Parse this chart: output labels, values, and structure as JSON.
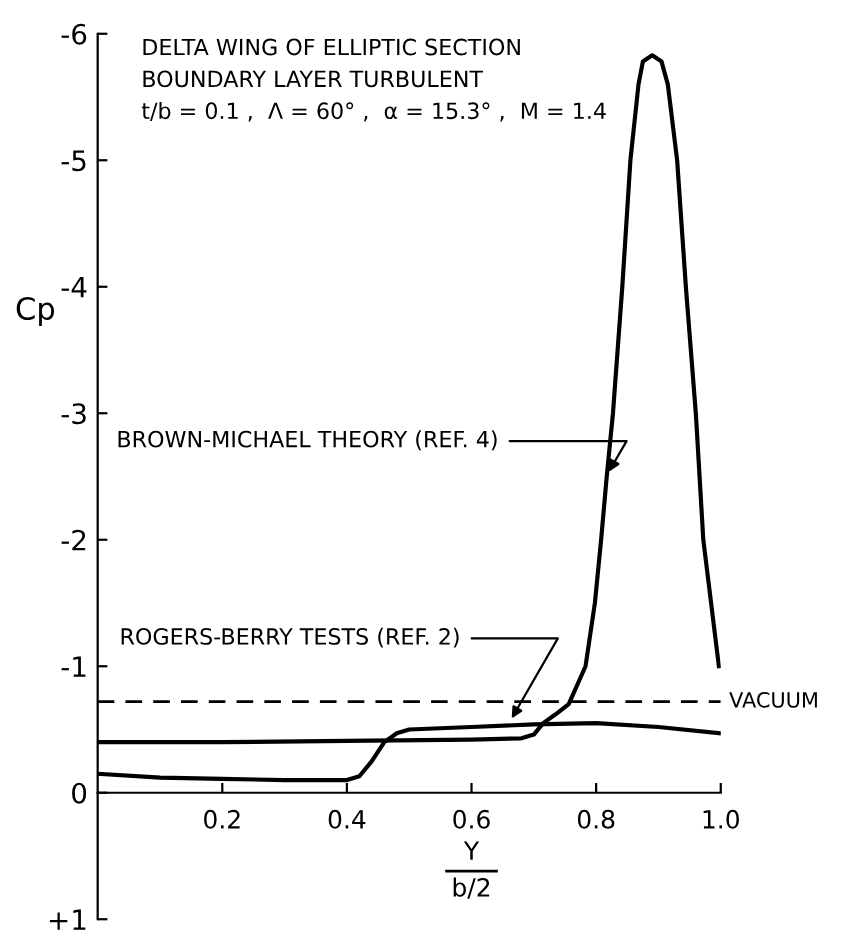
{
  "chart_data": {
    "type": "line",
    "annotations": [
      "DELTA WING OF ELLIPTIC SECTION",
      "BOUNDARY LAYER TURBULENT",
      "t/b = 0.1 ,  Λ = 60° ,  α = 15.3° ,  M = 1.4",
      {
        "text": "BROWN-MICHAEL THEORY (REF. 4)",
        "x": 0.816,
        "y": -2.5
      },
      {
        "text": "ROGERS-BERRY TESTS (REF. 2)",
        "x": 0.66,
        "y": -0.55
      }
    ],
    "xlabel": "Y\nb/2",
    "ylabel": "Cp",
    "series": [
      {
        "color": "#000000",
        "x": [
          0,
          0.2,
          0.4,
          0.6,
          0.68,
          0.7,
          0.715,
          0.735,
          0.756,
          0.783,
          0.798,
          0.808,
          0.817,
          0.827,
          0.842,
          0.855,
          0.868,
          0.875,
          0.89,
          0.905,
          0.915,
          0.93,
          0.944,
          0.96,
          0.972,
          0.997
        ],
        "values": [
          -0.4,
          -0.4,
          -0.41,
          -0.42,
          -0.43,
          -0.46,
          -0.55,
          -0.62,
          -0.7,
          -1.0,
          -1.5,
          -2.0,
          -2.5,
          -3.0,
          -4.0,
          -5.0,
          -5.6,
          -5.78,
          -5.83,
          -5.78,
          -5.6,
          -5.0,
          -4.0,
          -3.0,
          -2.0,
          -1.0
        ]
      },
      {
        "color": "#000000",
        "x": [
          0,
          0.1,
          0.2,
          0.3,
          0.4,
          0.42,
          0.44,
          0.46,
          0.48,
          0.5,
          0.6,
          0.7,
          0.8,
          0.9,
          1.0
        ],
        "values": [
          -0.15,
          -0.12,
          -0.11,
          -0.1,
          -0.1,
          -0.13,
          -0.25,
          -0.4,
          -0.47,
          -0.5,
          -0.52,
          -0.54,
          -0.55,
          -0.52,
          -0.47
        ]
      }
    ],
    "ref_lines": [
      {
        "axis": "y",
        "value": -0.72,
        "label": "VACUUM",
        "line_style": "dashed",
        "color": "#000000"
      }
    ],
    "xlim": [
      0,
      1.0
    ],
    "xticks": [
      0.2,
      0.4,
      0.6,
      0.8,
      {
        "value": 1.0,
        "label": "1.0"
      }
    ],
    "ylim": [
      1,
      -6
    ],
    "yticks": [
      -6,
      -5,
      -4,
      -3,
      -2,
      -1,
      0,
      {
        "value": 1,
        "label": "+1"
      }
    ],
    "grid": false,
    "legend": false,
    "marker": "none",
    "line_style": "solid"
  }
}
